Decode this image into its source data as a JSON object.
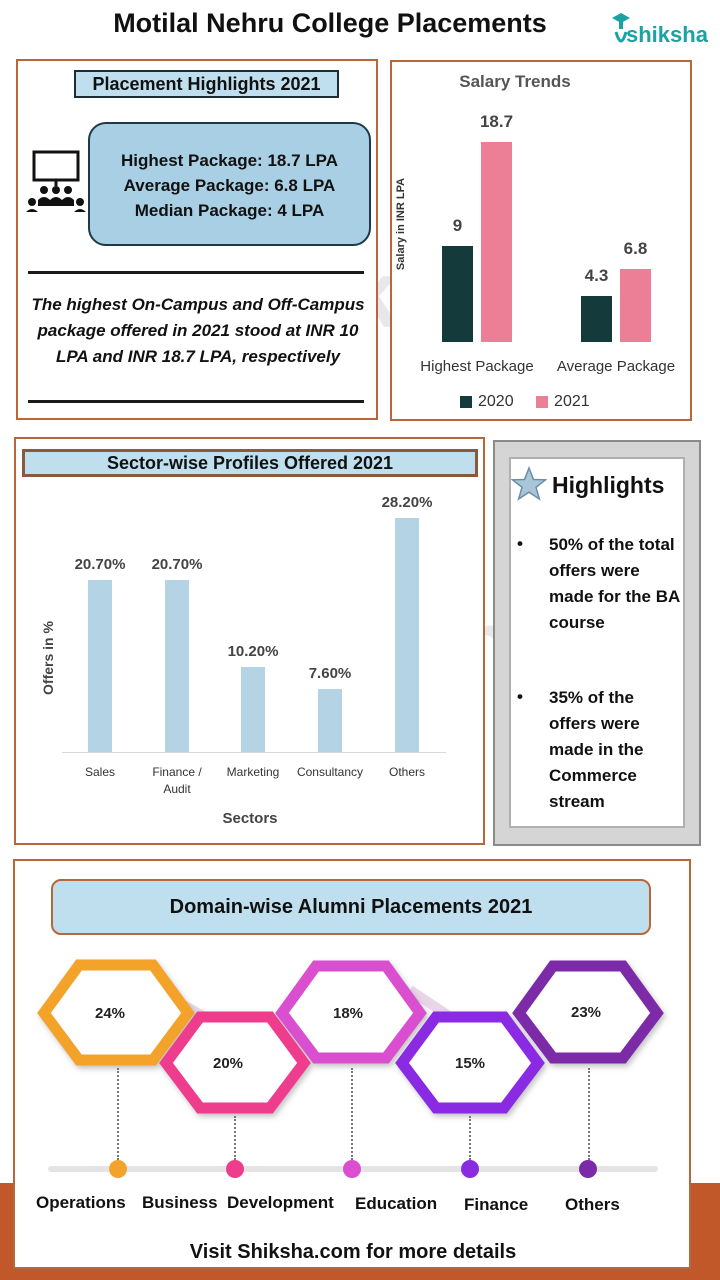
{
  "header": {
    "title": "Motilal Nehru College Placements",
    "logo_text": "shiksha"
  },
  "placement_highlights": {
    "title": "Placement Highlights  2021",
    "highest": "Highest Package: 18.7 LPA",
    "average": "Average Package: 6.8 LPA",
    "median": "Median Package: 4 LPA",
    "note": "The highest On-Campus and Off-Campus package offered in 2021 stood at INR 10 LPA and INR 18.7 LPA, respectively"
  },
  "salary_chart": {
    "title": "Salary  Trends",
    "ylabel": "Salary in INR LPA",
    "legend_2020": "2020",
    "legend_2021": "2021",
    "color_2020": "#153a3c",
    "color_2021": "#ec7f95"
  },
  "sector_chart": {
    "title": "Sector-wise Profiles Offered 2021",
    "ylabel": "Offers in %",
    "xlabel": "Sectors",
    "color": "#b4d4e6"
  },
  "highlights": {
    "title": "Highlights",
    "items": [
      "50% of the total offers were made for the BA course",
      "35% of the offers were made in the Commerce stream"
    ]
  },
  "domain": {
    "title": "Domain-wise Alumni  Placements 2021",
    "items": [
      {
        "pct": "24%",
        "label": "Operations",
        "color": "#f4a32a"
      },
      {
        "pct": "20%",
        "label": "Business  Development",
        "color": "#ee3d8c"
      },
      {
        "pct": "18%",
        "label": "Education",
        "color": "#d94fd0"
      },
      {
        "pct": "15%",
        "label": "Finance",
        "color": "#8a2be2"
      },
      {
        "pct": "23%",
        "label": "Others",
        "color": "#7b2aa8"
      }
    ]
  },
  "footer": {
    "text": "Visit Shiksha.com for more details"
  },
  "chart_data": [
    {
      "type": "bar",
      "title": "Salary  Trends",
      "ylabel": "Salary in INR LPA",
      "xlabel": "",
      "categories": [
        "Highest Package",
        "Average Package"
      ],
      "series": [
        {
          "name": "2020",
          "values": [
            9,
            4.3
          ],
          "labels": [
            "9",
            "4.3"
          ]
        },
        {
          "name": "2021",
          "values": [
            18.7,
            6.8
          ],
          "labels": [
            "18.7",
            "6.8"
          ]
        }
      ],
      "ylim": [
        0,
        20
      ],
      "legend": "bottom"
    },
    {
      "type": "bar",
      "title": "Sector-wise Profiles Offered 2021",
      "ylabel": "Offers in %",
      "xlabel": "Sectors",
      "categories": [
        "Sales",
        "Finance / Audit",
        "Marketing",
        "Consultancy",
        "Others"
      ],
      "category_lines": [
        [
          "Sales"
        ],
        [
          "Finance /",
          "Audit"
        ],
        [
          "Marketing"
        ],
        [
          "Consultancy"
        ],
        [
          "Others"
        ]
      ],
      "values": [
        20.7,
        20.7,
        10.2,
        7.6,
        28.2
      ],
      "labels": [
        "20.70%",
        "20.70%",
        "10.20%",
        "7.60%",
        "28.20%"
      ],
      "ylim": [
        0,
        30
      ]
    }
  ]
}
